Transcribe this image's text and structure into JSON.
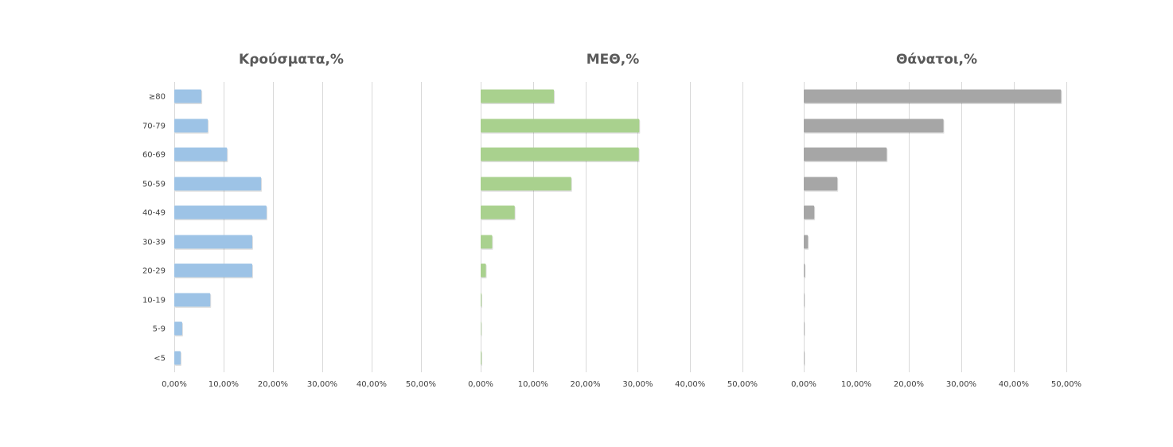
{
  "chart_data": [
    {
      "type": "bar",
      "orientation": "horizontal",
      "title": "Κρούσματα,%",
      "color": "#9dc3e6",
      "categories": [
        "≥80",
        "70-79",
        "60-69",
        "50-59",
        "40-49",
        "30-39",
        "20-29",
        "10-19",
        "5-9",
        "<5"
      ],
      "values": [
        5.5,
        6.8,
        10.7,
        17.6,
        18.7,
        15.8,
        15.8,
        7.3,
        1.6,
        1.3
      ],
      "xlim": [
        0,
        50
      ],
      "xticks": [
        "0,00%",
        "10,00%",
        "20,00%",
        "30,00%",
        "40,00%",
        "50,00%"
      ],
      "grid": true
    },
    {
      "type": "bar",
      "orientation": "horizontal",
      "title": "ΜΕΘ,%",
      "color": "#a9d18e",
      "categories": [
        "≥80",
        "70-79",
        "60-69",
        "50-59",
        "40-49",
        "30-39",
        "20-29",
        "10-19",
        "5-9",
        "<5"
      ],
      "values": [
        14.0,
        30.3,
        30.2,
        17.3,
        6.5,
        2.2,
        1.0,
        0.15,
        0.05,
        0.15
      ],
      "xlim": [
        0,
        50
      ],
      "xticks": [
        "0,00%",
        "10,00%",
        "20,00%",
        "30,00%",
        "40,00%",
        "50,00%"
      ],
      "grid": true
    },
    {
      "type": "bar",
      "orientation": "horizontal",
      "title": "Θάνατοι,%",
      "color": "#a6a6a6",
      "categories": [
        "≥80",
        "70-79",
        "60-69",
        "50-59",
        "40-49",
        "30-39",
        "20-29",
        "10-19",
        "5-9",
        "<5"
      ],
      "values": [
        49.0,
        26.6,
        15.8,
        6.4,
        2.0,
        0.8,
        0.2,
        0.05,
        0.02,
        0.05
      ],
      "xlim": [
        0,
        50
      ],
      "xticks": [
        "0,00%",
        "10,00%",
        "20,00%",
        "30,00%",
        "40,00%",
        "50,00%"
      ],
      "grid": true
    }
  ]
}
